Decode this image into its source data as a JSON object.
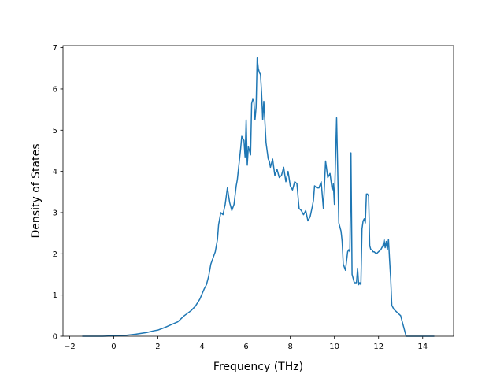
{
  "chart_data": {
    "type": "line",
    "title": "",
    "xlabel": "Frequency (THz)",
    "ylabel": "Density of States",
    "xlim": [
      -2.3,
      15.4
    ],
    "ylim": [
      0,
      7.05
    ],
    "xticks": [
      -2,
      0,
      2,
      4,
      6,
      8,
      10,
      12,
      14
    ],
    "xtick_labels": [
      "−2",
      "0",
      "2",
      "4",
      "6",
      "8",
      "10",
      "12",
      "14"
    ],
    "yticks": [
      0,
      1,
      2,
      3,
      4,
      5,
      6,
      7
    ],
    "ytick_labels": [
      "0",
      "1",
      "2",
      "3",
      "4",
      "5",
      "6",
      "7"
    ],
    "grid": false,
    "legend": "none",
    "line_color": "#1f77b4",
    "series": [
      {
        "x": [
          -1.4,
          -0.5,
          0.0,
          0.5,
          1.0,
          1.5,
          1.8,
          2.0,
          2.3,
          2.6,
          2.9,
          3.2,
          3.5,
          3.7,
          3.9,
          4.1,
          4.2,
          4.3,
          4.4,
          4.5,
          4.6,
          4.7,
          4.75,
          4.85,
          4.95,
          5.05,
          5.15,
          5.25,
          5.35,
          5.45,
          5.55,
          5.6,
          5.7,
          5.75,
          5.8,
          5.85,
          5.9,
          5.95,
          6.0,
          6.05,
          6.1,
          6.15,
          6.2,
          6.25,
          6.3,
          6.35,
          6.4,
          6.45,
          6.5,
          6.55,
          6.6,
          6.65,
          6.7,
          6.75,
          6.8,
          6.9,
          7.0,
          7.05,
          7.1,
          7.15,
          7.2,
          7.3,
          7.4,
          7.5,
          7.6,
          7.7,
          7.8,
          7.9,
          8.0,
          8.1,
          8.2,
          8.3,
          8.4,
          8.5,
          8.6,
          8.7,
          8.8,
          8.9,
          9.0,
          9.05,
          9.1,
          9.2,
          9.3,
          9.4,
          9.5,
          9.6,
          9.7,
          9.8,
          9.9,
          9.95,
          10.0,
          10.05,
          10.1,
          10.2,
          10.3,
          10.35,
          10.4,
          10.5,
          10.6,
          10.65,
          10.7,
          10.75,
          10.8,
          10.9,
          11.0,
          11.05,
          11.1,
          11.15,
          11.2,
          11.25,
          11.3,
          11.35,
          11.4,
          11.45,
          11.5,
          11.55,
          11.6,
          11.65,
          11.7,
          11.75,
          11.8,
          11.9,
          12.0,
          12.1,
          12.2,
          12.25,
          12.3,
          12.35,
          12.4,
          12.45,
          12.5,
          12.55,
          12.6,
          12.7,
          12.8,
          12.9,
          13.0,
          13.1,
          13.2,
          13.25,
          13.3,
          13.5,
          14.0,
          14.5
        ],
        "y": [
          0.0,
          0.0,
          0.01,
          0.02,
          0.05,
          0.09,
          0.13,
          0.15,
          0.21,
          0.28,
          0.35,
          0.5,
          0.62,
          0.73,
          0.9,
          1.15,
          1.25,
          1.45,
          1.75,
          1.9,
          2.05,
          2.35,
          2.7,
          3.0,
          2.95,
          3.2,
          3.6,
          3.25,
          3.05,
          3.2,
          3.65,
          3.8,
          4.3,
          4.55,
          4.85,
          4.8,
          4.75,
          4.35,
          5.25,
          4.15,
          4.6,
          4.5,
          4.4,
          5.65,
          5.75,
          5.7,
          5.25,
          5.55,
          6.75,
          6.5,
          6.4,
          6.35,
          5.9,
          5.25,
          5.7,
          4.7,
          4.3,
          4.25,
          4.1,
          4.2,
          4.3,
          3.9,
          4.05,
          3.85,
          3.9,
          4.1,
          3.75,
          4.0,
          3.65,
          3.55,
          3.75,
          3.7,
          3.1,
          3.05,
          2.95,
          3.05,
          2.8,
          2.9,
          3.15,
          3.3,
          3.65,
          3.6,
          3.6,
          3.75,
          3.1,
          4.25,
          3.85,
          3.95,
          3.55,
          3.7,
          3.2,
          4.3,
          5.3,
          2.75,
          2.55,
          2.3,
          1.75,
          1.6,
          2.05,
          2.1,
          2.05,
          4.45,
          1.5,
          1.3,
          1.3,
          1.65,
          1.25,
          1.3,
          1.25,
          2.6,
          2.8,
          2.85,
          2.75,
          3.45,
          3.45,
          3.4,
          2.2,
          2.1,
          2.1,
          2.05,
          2.05,
          2.0,
          2.05,
          2.1,
          2.2,
          2.35,
          2.15,
          2.3,
          2.1,
          2.35,
          1.85,
          1.4,
          0.75,
          0.65,
          0.6,
          0.55,
          0.5,
          0.3,
          0.1,
          0.0,
          0.0,
          0.0,
          0.0,
          0.0
        ]
      }
    ]
  }
}
